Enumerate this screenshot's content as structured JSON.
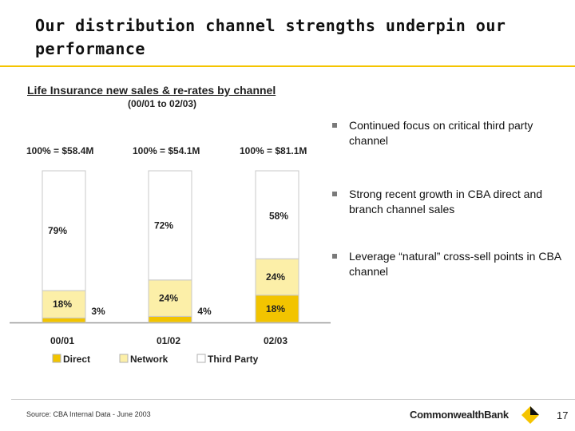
{
  "title": "Our distribution channel strengths underpin our performance",
  "chart_data": {
    "type": "bar",
    "stacked": true,
    "title": "Life Insurance new sales & re-rates by channel",
    "subtitle": "(00/01 to 02/03)",
    "categories": [
      "00/01",
      "01/02",
      "02/03"
    ],
    "totals": [
      "100% = $58.4M",
      "100% = $54.1M",
      "100% = $81.1M"
    ],
    "series": [
      {
        "name": "Direct",
        "values": [
          3,
          4,
          18
        ],
        "labels": [
          "3%",
          "4%",
          "18%"
        ],
        "color": "#f2c400"
      },
      {
        "name": "Network",
        "values": [
          18,
          24,
          24
        ],
        "labels": [
          "18%",
          "24%",
          "24%"
        ],
        "color": "#fcefa8"
      },
      {
        "name": "Third Party",
        "values": [
          79,
          72,
          58
        ],
        "labels": [
          "79%",
          "72%",
          "58%"
        ],
        "color": "#ffffff"
      }
    ],
    "ylim": [
      0,
      100
    ]
  },
  "bullets": [
    "Continued focus on critical third party channel",
    "Strong recent growth in CBA direct and branch channel sales",
    "Leverage “natural” cross-sell points in CBA channel"
  ],
  "footer": {
    "source": "Source: CBA Internal Data - June 2003",
    "brand": "CommonwealthBank",
    "page_number": "17"
  },
  "colors": {
    "accent": "#f5c400",
    "direct": "#f2c400",
    "network": "#fcefa8",
    "third_party": "#ffffff"
  }
}
